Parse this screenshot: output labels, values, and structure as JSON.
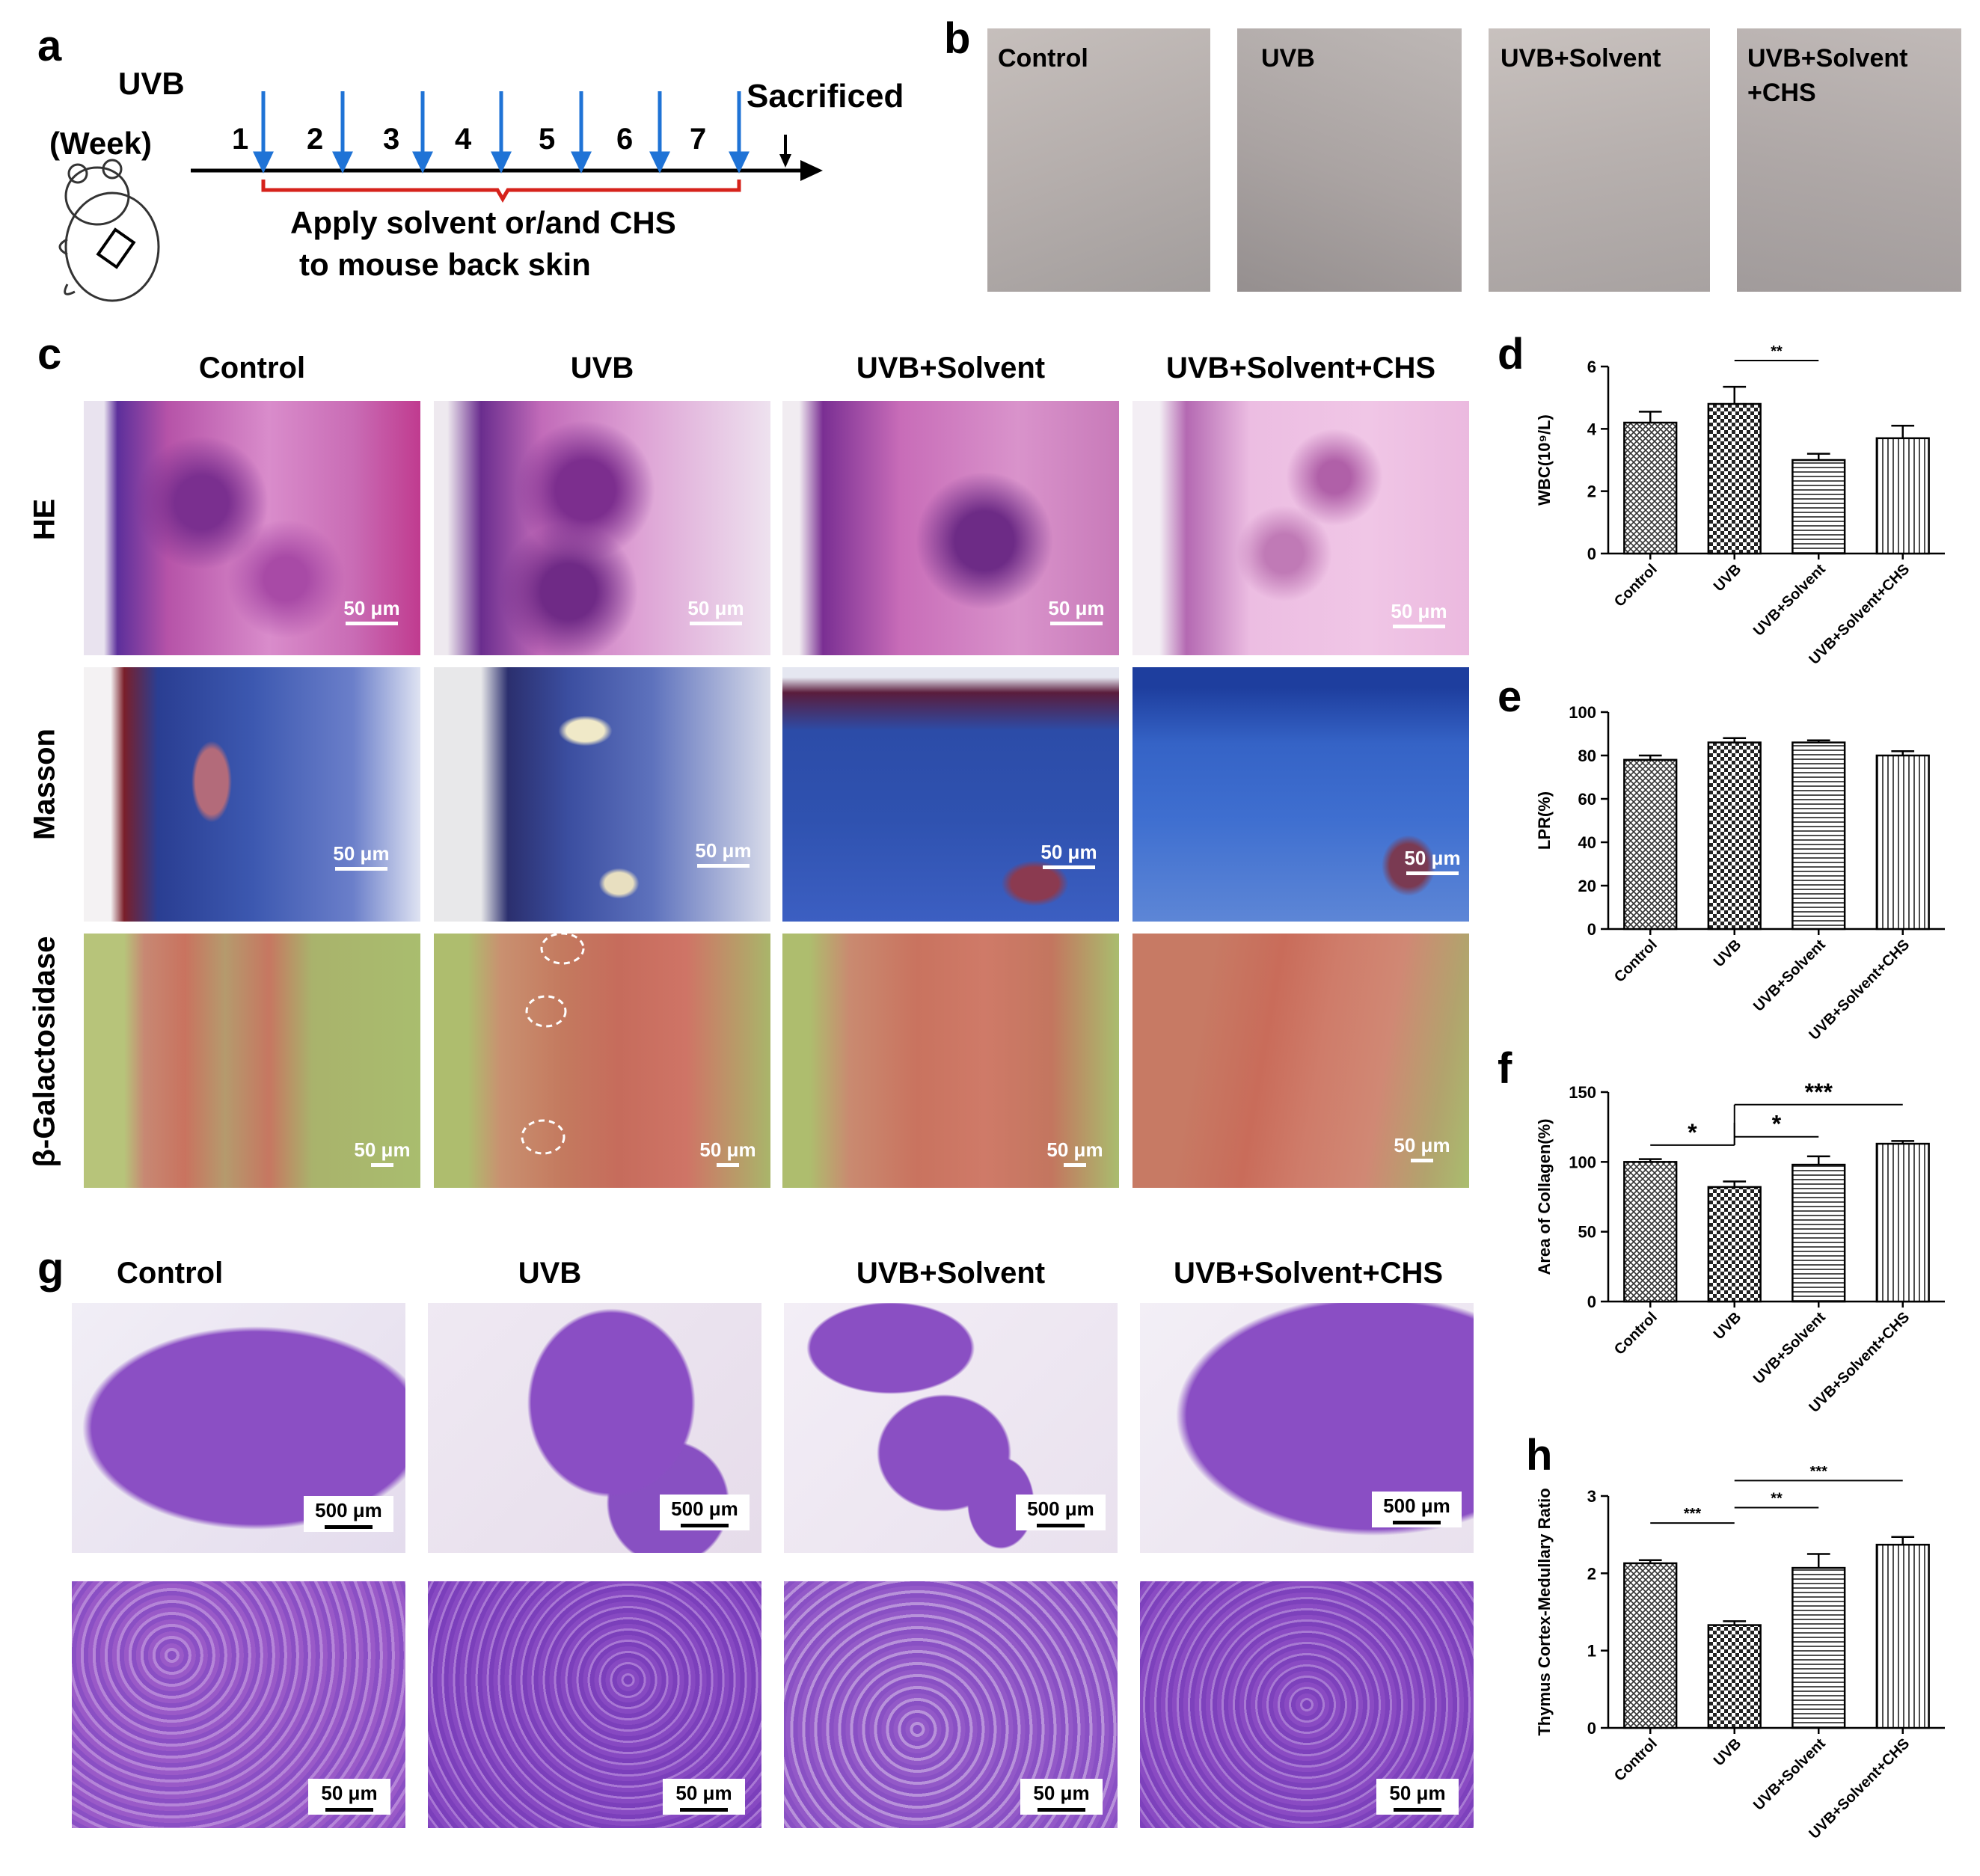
{
  "panel_labels": {
    "a": "a",
    "b": "b",
    "c": "c",
    "d": "d",
    "e": "e",
    "f": "f",
    "g": "g",
    "h": "h"
  },
  "groups": [
    "Control",
    "UVB",
    "UVB+Solvent",
    "UVB+Solvent+CHS"
  ],
  "panel_a": {
    "uvb_label": "UVB",
    "week_label": "(Week)",
    "weeks": [
      "1",
      "2",
      "3",
      "4",
      "5",
      "6",
      "7"
    ],
    "sacrificed_label": "Sacrificed",
    "apply_line1": "Apply solvent or/and CHS",
    "apply_line2": "to mouse back skin"
  },
  "panel_b": {
    "labels": [
      "Control",
      "UVB",
      "UVB+Solvent",
      "UVB+Solvent"
    ],
    "last_label_line2": "+CHS"
  },
  "panel_c": {
    "headers": [
      "Control",
      "UVB",
      "UVB+Solvent",
      "UVB+Solvent+CHS"
    ],
    "rows": [
      "HE",
      "Masson",
      "β-Galactosidase"
    ],
    "scale": "50 μm"
  },
  "panel_g": {
    "headers": [
      "Control",
      "UVB",
      "UVB+Solvent",
      "UVB+Solvent+CHS"
    ],
    "scale_top": "500 μm",
    "scale_bottom": "50 μm"
  },
  "colors": {
    "he_purple": "#b04aa8",
    "he_pink": "#e7a6d8",
    "masson_blue": "#2a56c0",
    "gal_green": "#a9bd6e",
    "gal_red": "#c97062",
    "thymus_purple": "#8a4fc2",
    "arrow_blue": "#1f73d6",
    "bracket_red": "#d6221b"
  },
  "chart_data": [
    {
      "id": "d",
      "type": "bar",
      "categories": [
        "Control",
        "UVB",
        "UVB+Solvent",
        "UVB+Solvent+CHS"
      ],
      "values": [
        4.2,
        4.8,
        3.0,
        3.7
      ],
      "errors": [
        0.35,
        0.55,
        0.2,
        0.4
      ],
      "ylabel": "WBC(10⁹/L)",
      "ylim": [
        0,
        6
      ],
      "yticks": [
        "0",
        "2",
        "4",
        "6"
      ],
      "significance": [
        {
          "from": 1,
          "to": 2,
          "label": "**"
        }
      ]
    },
    {
      "id": "e",
      "type": "bar",
      "categories": [
        "Control",
        "UVB",
        "UVB+Solvent",
        "UVB+Solvent+CHS"
      ],
      "values": [
        78,
        86,
        86,
        80
      ],
      "errors": [
        2,
        2,
        1,
        2
      ],
      "ylabel": "LPR(%)",
      "ylim": [
        0,
        100
      ],
      "yticks": [
        "0",
        "20",
        "40",
        "60",
        "80",
        "100"
      ],
      "significance": []
    },
    {
      "id": "f",
      "type": "bar",
      "categories": [
        "Control",
        "UVB",
        "UVB+Solvent",
        "UVB+Solvent+CHS"
      ],
      "values": [
        100,
        82,
        98,
        113
      ],
      "errors": [
        2,
        4,
        6,
        2
      ],
      "ylabel": "Area of Collagen(%)",
      "ylim": [
        0,
        150
      ],
      "yticks": [
        "0",
        "50",
        "100",
        "150"
      ],
      "significance": [
        {
          "from": 0,
          "to": 1,
          "label": "*"
        },
        {
          "from": 1,
          "to": 2,
          "label": "*"
        },
        {
          "from": 1,
          "to": 3,
          "label": "***"
        }
      ]
    },
    {
      "id": "h",
      "type": "bar",
      "categories": [
        "Control",
        "UVB",
        "UVB+Solvent",
        "UVB+Solvent+CHS"
      ],
      "values": [
        2.13,
        1.33,
        2.07,
        2.37
      ],
      "errors": [
        0.04,
        0.05,
        0.18,
        0.1
      ],
      "ylabel": "Thymus Cortex-Medullary Ratio",
      "ylim": [
        0,
        3
      ],
      "yticks": [
        "0",
        "1",
        "2",
        "3"
      ],
      "significance": [
        {
          "from": 0,
          "to": 1,
          "label": "***"
        },
        {
          "from": 1,
          "to": 2,
          "label": "**"
        },
        {
          "from": 1,
          "to": 3,
          "label": "***"
        }
      ]
    }
  ]
}
